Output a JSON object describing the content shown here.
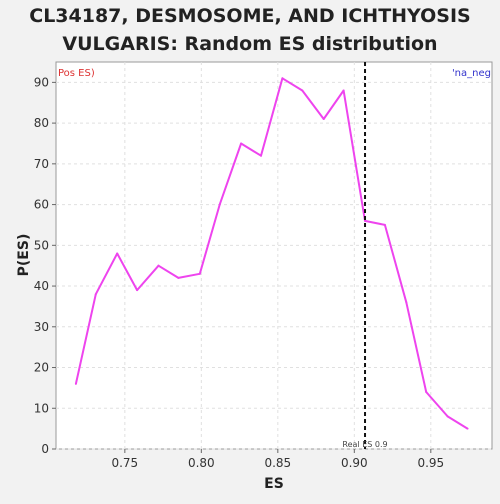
{
  "chart_data": {
    "type": "line",
    "title_line1": "CL34187, DESMOSOME, AND ICHTHYOSIS",
    "title_line2": "VULGARIS: Random ES distribution",
    "xlabel": "ES",
    "ylabel": "P(ES)",
    "xlim": [
      0.705,
      0.99
    ],
    "ylim": [
      0,
      95
    ],
    "x_ticks": [
      0.75,
      0.8,
      0.85,
      0.9,
      0.95
    ],
    "x_tick_labels": [
      "0.75",
      "0.80",
      "0.85",
      "0.90",
      "0.95"
    ],
    "y_ticks": [
      0,
      10,
      20,
      30,
      40,
      50,
      60,
      70,
      80,
      90
    ],
    "y_tick_labels": [
      "0",
      "10",
      "20",
      "30",
      "40",
      "50",
      "60",
      "70",
      "80",
      "90"
    ],
    "grid": true,
    "series": [
      {
        "color": "#ee44ee",
        "x": [
          0.718,
          0.731,
          0.745,
          0.758,
          0.772,
          0.785,
          0.799,
          0.812,
          0.826,
          0.839,
          0.853,
          0.866,
          0.88,
          0.893,
          0.907,
          0.92,
          0.934,
          0.947,
          0.961,
          0.974
        ],
        "y": [
          16,
          38,
          48,
          39,
          45,
          42,
          43,
          60,
          75,
          72,
          91,
          88,
          81,
          88,
          56,
          55,
          36,
          14,
          8,
          5
        ]
      }
    ],
    "real_es": {
      "x": 0.907,
      "label": "Real ES 0.9"
    },
    "legend_pos": {
      "text": "Pos ES)",
      "color": "#dd3333"
    },
    "legend_neg": {
      "text": "'na_neg",
      "color": "#3333cc"
    }
  }
}
